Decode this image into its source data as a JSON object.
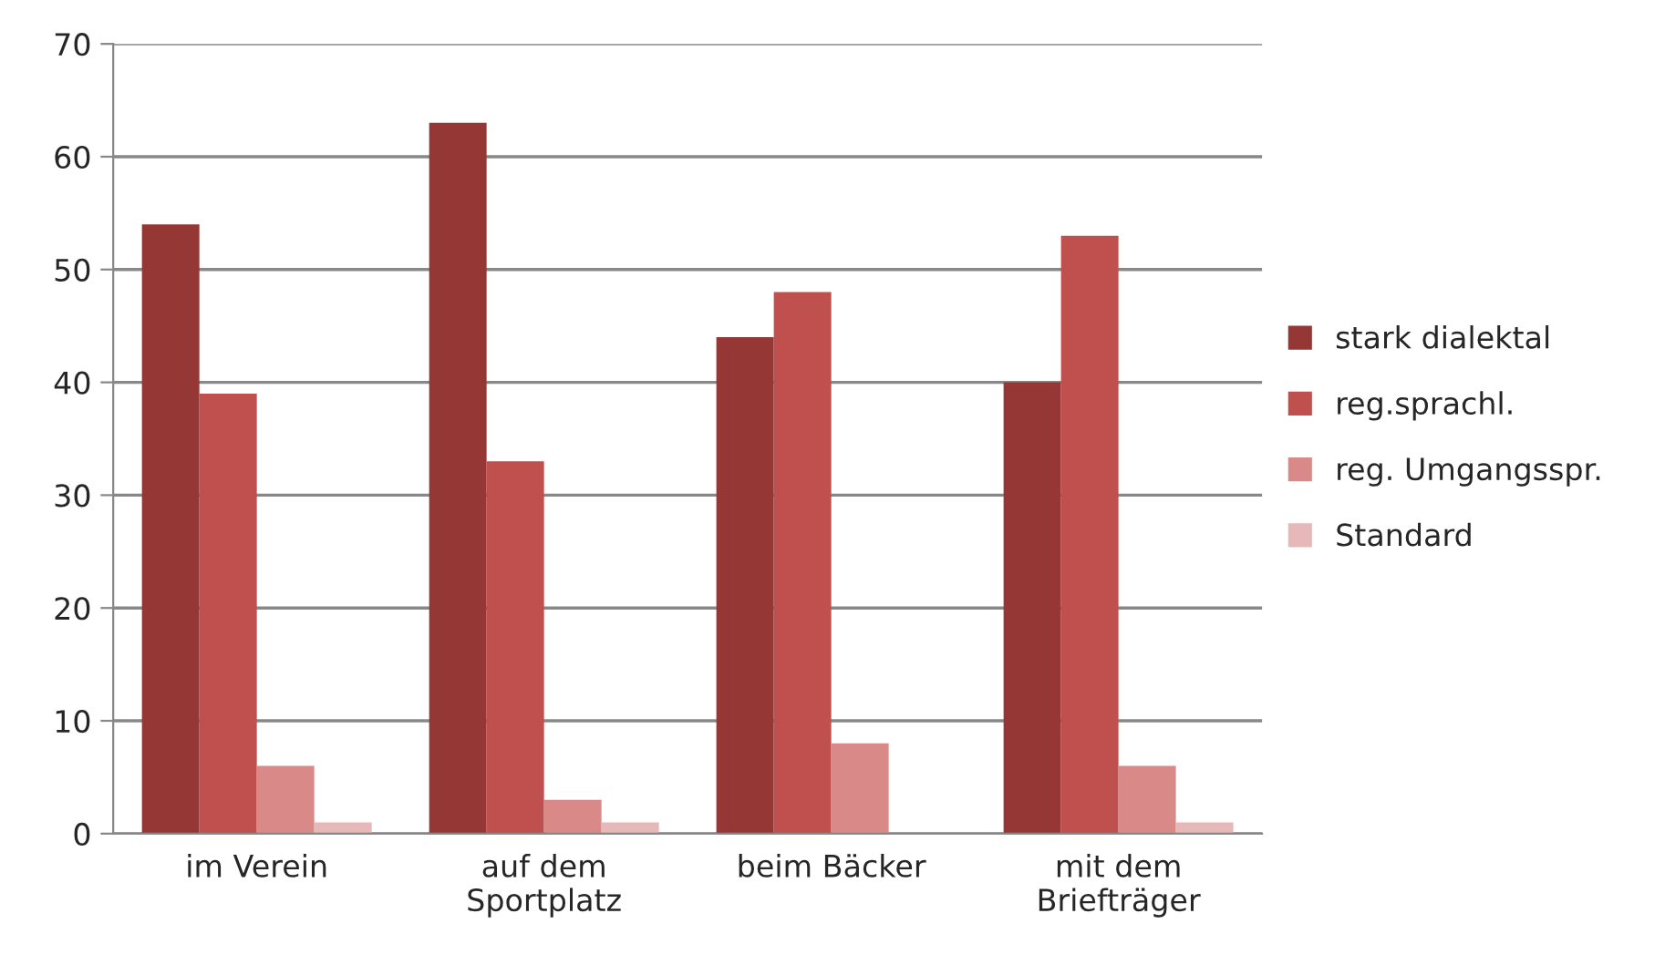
{
  "chart_data": {
    "type": "bar",
    "categories": [
      "im Verein",
      "auf dem\nSportplatz",
      "beim Bäcker",
      "mit dem\nBriefträger"
    ],
    "series": [
      {
        "name": "stark dialektal",
        "color": "#953735",
        "values": [
          54,
          63,
          44,
          40
        ]
      },
      {
        "name": "reg.sprachl.",
        "color": "#c0504d",
        "values": [
          39,
          33,
          48,
          53
        ]
      },
      {
        "name": "reg. Umgangsspr.",
        "color": "#d98a88",
        "values": [
          6,
          3,
          8,
          6
        ]
      },
      {
        "name": "Standard",
        "color": "#e6b9b8",
        "values": [
          1,
          1,
          null,
          1
        ]
      }
    ],
    "ylim": [
      0,
      70
    ],
    "yticks": [
      0,
      10,
      20,
      30,
      40,
      50,
      60,
      70
    ],
    "grid": "y",
    "legend": "right"
  }
}
